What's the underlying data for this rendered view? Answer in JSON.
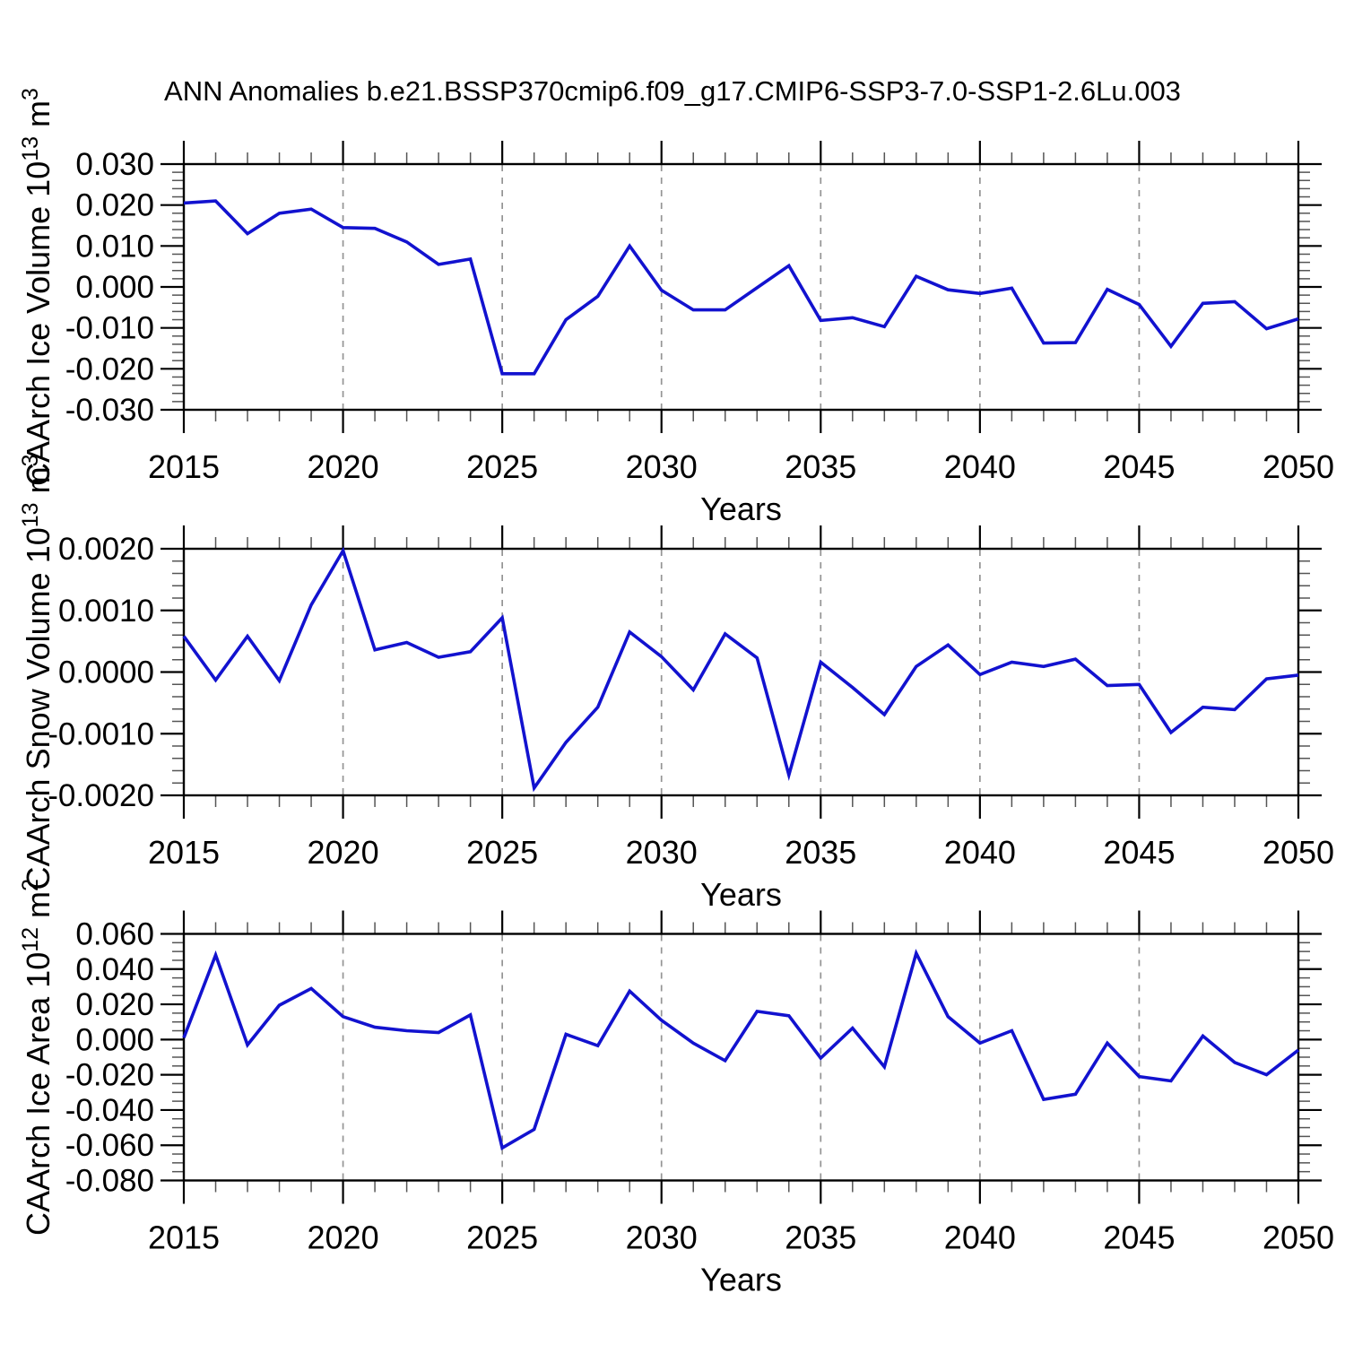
{
  "title": "ANN Anomalies b.e21.BSSP370cmip6.f09_g17.CMIP6-SSP3-7.0-SSP1-2.6Lu.003",
  "colors": {
    "line": "#1212cf",
    "frame": "#000000",
    "major_tick": "#000000",
    "minor_tick": "#555555",
    "grid": "#949494",
    "text": "#000000"
  },
  "x_axis": {
    "label": "Years",
    "start": 2015,
    "end": 2050,
    "major_step": 5,
    "minor_step": 1,
    "tick_labels": [
      "2015",
      "2020",
      "2025",
      "2030",
      "2035",
      "2040",
      "2045",
      "2050"
    ],
    "grid_years": [
      2020,
      2025,
      2030,
      2035,
      2040,
      2045
    ]
  },
  "chart_data": [
    {
      "type": "line",
      "name": "caarch-ice-volume",
      "ylabel": "CAArch Ice Volume 10^13 m^3",
      "ylabel_parts": [
        [
          "CAArch Ice Volume 10",
          "n"
        ],
        [
          "13",
          "s"
        ],
        [
          " m",
          "n"
        ],
        [
          "3",
          "s"
        ]
      ],
      "xlabel": "Years",
      "ylim": [
        -0.03,
        0.03
      ],
      "ytick_values": [
        0.03,
        0.02,
        0.01,
        0.0,
        -0.01,
        -0.02,
        -0.03
      ],
      "ytick_labels": [
        "0.030",
        "0.020",
        "0.010",
        "0.000",
        "-0.010",
        "-0.020",
        "-0.030"
      ],
      "yminor_step": 0.002,
      "grid": "vertical-dashed",
      "legend": "none",
      "x": [
        2015,
        2016,
        2017,
        2018,
        2019,
        2020,
        2021,
        2022,
        2023,
        2024,
        2025,
        2026,
        2027,
        2028,
        2029,
        2030,
        2031,
        2032,
        2033,
        2034,
        2035,
        2036,
        2037,
        2038,
        2039,
        2040,
        2041,
        2042,
        2043,
        2044,
        2045,
        2046,
        2047,
        2048,
        2049,
        2050
      ],
      "values": [
        0.0205,
        0.021,
        0.013,
        0.018,
        0.019,
        0.0145,
        0.0143,
        0.011,
        0.0055,
        0.0068,
        -0.0212,
        -0.0212,
        -0.008,
        -0.0023,
        0.01,
        -0.0008,
        -0.0056,
        -0.0056,
        -0.0002,
        0.0052,
        -0.0082,
        -0.0075,
        -0.0097,
        0.0026,
        -0.0007,
        -0.0016,
        -0.0003,
        -0.0137,
        -0.0136,
        -0.0006,
        -0.0043,
        -0.0145,
        -0.004,
        -0.0036,
        -0.0102,
        -0.0078
      ]
    },
    {
      "type": "line",
      "name": "caarch-snow-volume",
      "ylabel": "CAArch Snow Volume 10^13 m^3",
      "ylabel_parts": [
        [
          "CAArch Snow Volume 10",
          "n"
        ],
        [
          "13",
          "s"
        ],
        [
          " m",
          "n"
        ],
        [
          "3",
          "s"
        ]
      ],
      "xlabel": "Years",
      "ylim": [
        -0.002,
        0.002
      ],
      "ytick_values": [
        0.002,
        0.001,
        0.0,
        -0.001,
        -0.002
      ],
      "ytick_labels": [
        "0.0020",
        "0.0010",
        "0.0000",
        "-0.0010",
        "-0.0020"
      ],
      "yminor_step": 0.0002,
      "grid": "vertical-dashed",
      "legend": "none",
      "x": [
        2015,
        2016,
        2017,
        2018,
        2019,
        2020,
        2021,
        2022,
        2023,
        2024,
        2025,
        2026,
        2027,
        2028,
        2029,
        2030,
        2031,
        2032,
        2033,
        2034,
        2035,
        2036,
        2037,
        2038,
        2039,
        2040,
        2041,
        2042,
        2043,
        2044,
        2045,
        2046,
        2047,
        2048,
        2049,
        2050
      ],
      "values": [
        0.00058,
        -0.00013,
        0.00058,
        -0.00014,
        0.00109,
        0.00197,
        0.00036,
        0.00048,
        0.00024,
        0.00033,
        0.00088,
        -0.00188,
        -0.00114,
        -0.00057,
        0.00065,
        0.00025,
        -0.00029,
        0.00062,
        0.00023,
        -0.00167,
        0.00016,
        -0.00025,
        -0.00069,
        9e-05,
        0.00044,
        -4e-05,
        0.00016,
        9e-05,
        0.00021,
        -0.00022,
        -0.0002,
        -0.00098,
        -0.00057,
        -0.00061,
        -0.00011,
        -5e-05
      ]
    },
    {
      "type": "line",
      "name": "caarch-ice-area",
      "ylabel": "CAArch Ice Area 10^12 m^2",
      "ylabel_parts": [
        [
          "CAArch Ice Area 10",
          "n"
        ],
        [
          "12",
          "s"
        ],
        [
          " m",
          "n"
        ],
        [
          "2",
          "s"
        ]
      ],
      "xlabel": "Years",
      "ylim": [
        -0.08,
        0.06
      ],
      "ytick_values": [
        0.06,
        0.04,
        0.02,
        0.0,
        -0.02,
        -0.04,
        -0.06,
        -0.08
      ],
      "ytick_labels": [
        "0.060",
        "0.040",
        "0.020",
        "0.000",
        "-0.020",
        "-0.040",
        "-0.060",
        "-0.080"
      ],
      "yminor_step": 0.005,
      "grid": "vertical-dashed",
      "legend": "none",
      "x": [
        2015,
        2016,
        2017,
        2018,
        2019,
        2020,
        2021,
        2022,
        2023,
        2024,
        2025,
        2026,
        2027,
        2028,
        2029,
        2030,
        2031,
        2032,
        2033,
        2034,
        2035,
        2036,
        2037,
        2038,
        2039,
        2040,
        2041,
        2042,
        2043,
        2044,
        2045,
        2046,
        2047,
        2048,
        2049,
        2050
      ],
      "values": [
        0.001,
        0.048,
        -0.003,
        0.0195,
        0.029,
        0.013,
        0.007,
        0.005,
        0.004,
        0.014,
        -0.0615,
        -0.051,
        0.003,
        -0.0035,
        0.0275,
        0.011,
        -0.002,
        -0.012,
        0.016,
        0.0135,
        -0.0105,
        0.0065,
        -0.0155,
        0.049,
        0.013,
        -0.002,
        0.005,
        -0.034,
        -0.031,
        -0.002,
        -0.021,
        -0.0235,
        0.002,
        -0.013,
        -0.02,
        -0.006
      ]
    }
  ]
}
